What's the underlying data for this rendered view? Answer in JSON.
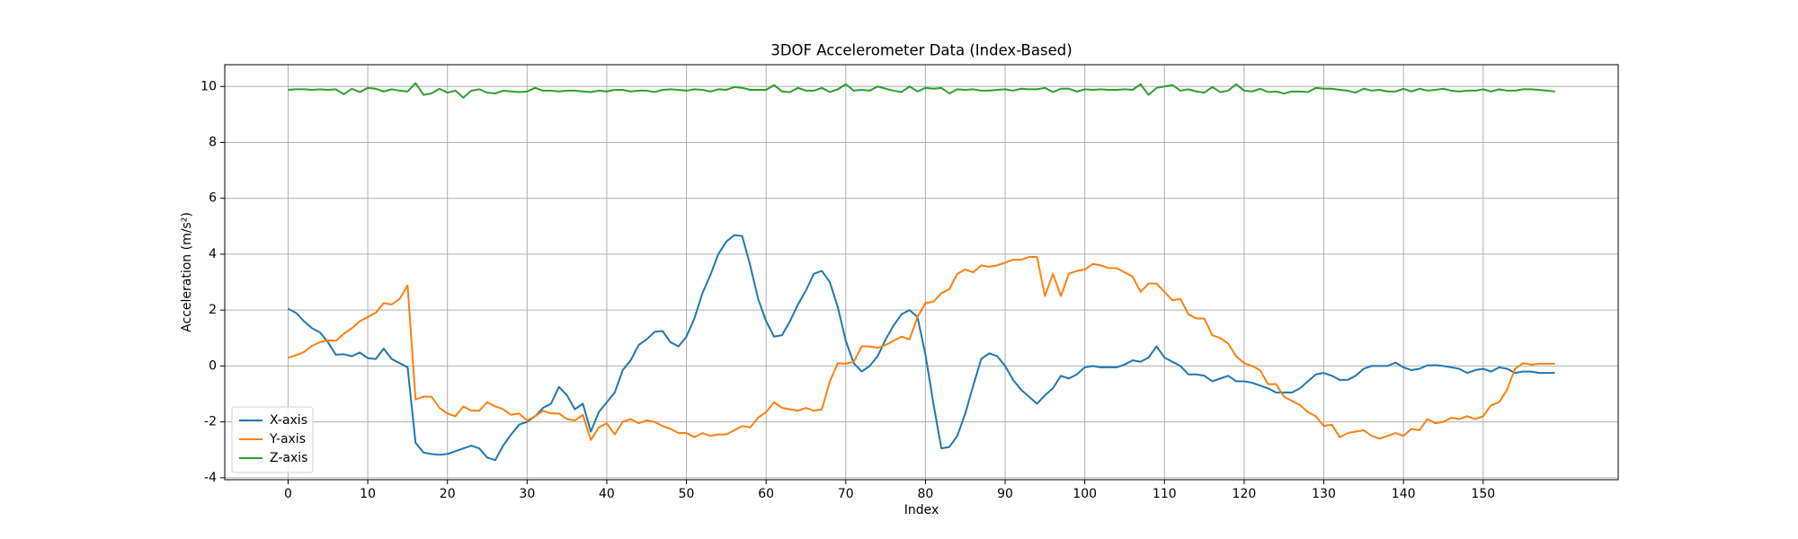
{
  "chart_data": {
    "type": "line",
    "title": "3DOF Accelerometer Data (Index-Based)",
    "xlabel": "Index",
    "ylabel": "Acceleration (m/s²)",
    "x": [
      0,
      1,
      2,
      3,
      4,
      5,
      6,
      7,
      8,
      9,
      10,
      11,
      12,
      13,
      14,
      15,
      16,
      17,
      18,
      19,
      20,
      21,
      22,
      23,
      24,
      25,
      26,
      27,
      28,
      29,
      30,
      31,
      32,
      33,
      34,
      35,
      36,
      37,
      38,
      39,
      40,
      41,
      42,
      43,
      44,
      45,
      46,
      47,
      48,
      49,
      50,
      51,
      52,
      53,
      54,
      55,
      56,
      57,
      58,
      59,
      60,
      61,
      62,
      63,
      64,
      65,
      66,
      67,
      68,
      69,
      70,
      71,
      72,
      73,
      74,
      75,
      76,
      77,
      78,
      79,
      80,
      81,
      82,
      83,
      84,
      85,
      86,
      87,
      88,
      89,
      90,
      91,
      92,
      93,
      94,
      95,
      96,
      97,
      98,
      99,
      100,
      101,
      102,
      103,
      104,
      105,
      106,
      107,
      108,
      109,
      110,
      111,
      112,
      113,
      114,
      115,
      116,
      117,
      118,
      119,
      120,
      121,
      122,
      123,
      124,
      125,
      126,
      127,
      128,
      129,
      130,
      131,
      132,
      133,
      134,
      135,
      136,
      137,
      138,
      139,
      140,
      141,
      142,
      143,
      144,
      145,
      146,
      147,
      148,
      149,
      150,
      151,
      152,
      153,
      154,
      155,
      156,
      157,
      158,
      159
    ],
    "series": [
      {
        "name": "X-axis",
        "color": "#1f77b4",
        "values": [
          2.05,
          1.9,
          1.6,
          1.35,
          1.2,
          0.85,
          0.4,
          0.42,
          0.35,
          0.48,
          0.28,
          0.25,
          0.62,
          0.25,
          0.1,
          -0.05,
          -2.75,
          -3.1,
          -3.15,
          -3.18,
          -3.15,
          -3.05,
          -2.95,
          -2.85,
          -2.95,
          -3.28,
          -3.37,
          -2.85,
          -2.45,
          -2.1,
          -2.0,
          -1.8,
          -1.5,
          -1.35,
          -0.75,
          -1.05,
          -1.55,
          -1.35,
          -2.35,
          -1.65,
          -1.3,
          -0.95,
          -0.15,
          0.2,
          0.75,
          0.95,
          1.22,
          1.25,
          0.85,
          0.7,
          1.05,
          1.7,
          2.6,
          3.25,
          4.0,
          4.45,
          4.68,
          4.65,
          3.6,
          2.4,
          1.6,
          1.05,
          1.1,
          1.6,
          2.2,
          2.7,
          3.3,
          3.4,
          3.0,
          2.1,
          0.9,
          0.1,
          -0.2,
          0.0,
          0.35,
          0.95,
          1.45,
          1.85,
          2.0,
          1.75,
          0.4,
          -1.35,
          -2.95,
          -2.9,
          -2.5,
          -1.7,
          -0.7,
          0.25,
          0.45,
          0.35,
          0.0,
          -0.5,
          -0.85,
          -1.1,
          -1.35,
          -1.05,
          -0.8,
          -0.35,
          -0.45,
          -0.3,
          -0.05,
          0.0,
          -0.05,
          -0.05,
          -0.05,
          0.05,
          0.2,
          0.15,
          0.3,
          0.7,
          0.3,
          0.15,
          0.0,
          -0.3,
          -0.3,
          -0.35,
          -0.55,
          -0.45,
          -0.35,
          -0.55,
          -0.55,
          -0.6,
          -0.7,
          -0.8,
          -0.95,
          -0.95,
          -0.95,
          -0.8,
          -0.55,
          -0.3,
          -0.25,
          -0.35,
          -0.5,
          -0.5,
          -0.35,
          -0.1,
          0.0,
          0.0,
          0.0,
          0.12,
          -0.05,
          -0.15,
          -0.1,
          0.02,
          0.03,
          0.0,
          -0.05,
          -0.1,
          -0.25,
          -0.15,
          -0.1,
          -0.2,
          -0.05,
          -0.1,
          -0.25,
          -0.2,
          -0.2,
          -0.25,
          -0.25,
          -0.25
        ]
      },
      {
        "name": "Y-axis",
        "color": "#ff7f0e",
        "values": [
          0.3,
          0.38,
          0.5,
          0.72,
          0.85,
          0.92,
          0.9,
          1.15,
          1.35,
          1.6,
          1.75,
          1.9,
          2.25,
          2.2,
          2.4,
          2.88,
          -1.2,
          -1.1,
          -1.1,
          -1.5,
          -1.7,
          -1.8,
          -1.45,
          -1.6,
          -1.6,
          -1.3,
          -1.45,
          -1.55,
          -1.75,
          -1.7,
          -1.95,
          -1.8,
          -1.6,
          -1.7,
          -1.7,
          -1.9,
          -1.95,
          -1.75,
          -2.65,
          -2.2,
          -2.05,
          -2.45,
          -2.0,
          -1.9,
          -2.05,
          -1.95,
          -2.0,
          -2.15,
          -2.25,
          -2.4,
          -2.4,
          -2.55,
          -2.4,
          -2.5,
          -2.45,
          -2.45,
          -2.3,
          -2.15,
          -2.2,
          -1.85,
          -1.65,
          -1.3,
          -1.5,
          -1.55,
          -1.6,
          -1.5,
          -1.6,
          -1.55,
          -0.55,
          0.1,
          0.08,
          0.15,
          0.7,
          0.7,
          0.65,
          0.75,
          0.9,
          1.05,
          0.95,
          1.75,
          2.25,
          2.3,
          2.6,
          2.75,
          3.3,
          3.45,
          3.35,
          3.6,
          3.55,
          3.6,
          3.7,
          3.8,
          3.8,
          3.9,
          3.9,
          2.5,
          3.3,
          2.5,
          3.3,
          3.4,
          3.45,
          3.65,
          3.6,
          3.5,
          3.5,
          3.35,
          3.2,
          2.65,
          2.95,
          2.95,
          2.65,
          2.35,
          2.4,
          1.85,
          1.7,
          1.7,
          1.1,
          1.0,
          0.8,
          0.35,
          0.1,
          0.0,
          -0.15,
          -0.65,
          -0.65,
          -1.1,
          -1.25,
          -1.4,
          -1.65,
          -1.8,
          -2.15,
          -2.1,
          -2.55,
          -2.4,
          -2.35,
          -2.3,
          -2.5,
          -2.6,
          -2.5,
          -2.4,
          -2.5,
          -2.25,
          -2.3,
          -1.9,
          -2.05,
          -2.0,
          -1.85,
          -1.9,
          -1.8,
          -1.9,
          -1.8,
          -1.4,
          -1.3,
          -0.85,
          -0.1,
          0.1,
          0.05,
          0.08,
          0.08,
          0.08
        ]
      },
      {
        "name": "Z-axis",
        "color": "#2ca02c",
        "values": [
          9.88,
          9.9,
          9.9,
          9.88,
          9.9,
          9.88,
          9.9,
          9.72,
          9.92,
          9.8,
          9.95,
          9.92,
          9.82,
          9.9,
          9.85,
          9.82,
          10.12,
          9.7,
          9.75,
          9.92,
          9.78,
          9.85,
          9.6,
          9.85,
          9.9,
          9.78,
          9.75,
          9.85,
          9.82,
          9.8,
          9.82,
          9.95,
          9.85,
          9.85,
          9.82,
          9.85,
          9.85,
          9.82,
          9.8,
          9.85,
          9.82,
          9.88,
          9.88,
          9.82,
          9.85,
          9.85,
          9.8,
          9.88,
          9.9,
          9.88,
          9.85,
          9.9,
          9.88,
          9.82,
          9.9,
          9.88,
          9.98,
          9.95,
          9.88,
          9.88,
          9.88,
          10.05,
          9.82,
          9.8,
          9.95,
          9.85,
          9.85,
          9.95,
          9.8,
          9.9,
          10.08,
          9.85,
          9.88,
          9.85,
          10.0,
          9.92,
          9.85,
          9.8,
          10.0,
          9.82,
          9.95,
          9.92,
          9.95,
          9.75,
          9.9,
          9.88,
          9.9,
          9.85,
          9.85,
          9.88,
          9.9,
          9.85,
          9.92,
          9.9,
          9.9,
          9.95,
          9.8,
          9.92,
          9.92,
          9.82,
          9.9,
          9.88,
          9.9,
          9.88,
          9.88,
          9.9,
          9.88,
          10.08,
          9.7,
          9.95,
          10.0,
          10.05,
          9.85,
          9.9,
          9.82,
          9.78,
          9.98,
          9.8,
          9.85,
          10.08,
          9.85,
          9.82,
          9.92,
          9.8,
          9.82,
          9.75,
          9.82,
          9.82,
          9.8,
          9.95,
          9.92,
          9.92,
          9.88,
          9.85,
          9.78,
          9.92,
          9.85,
          9.88,
          9.82,
          9.82,
          9.92,
          9.82,
          9.92,
          9.85,
          9.88,
          9.92,
          9.85,
          9.82,
          9.85,
          9.85,
          9.9,
          9.82,
          9.9,
          9.85,
          9.85,
          9.9,
          9.9,
          9.88,
          9.85,
          9.82
        ]
      }
    ],
    "xlim": [
      -7.95,
      166.95
    ],
    "xticks": [
      0,
      10,
      20,
      30,
      40,
      50,
      60,
      70,
      80,
      90,
      100,
      110,
      120,
      130,
      140,
      150
    ],
    "ylim": [
      -4.07,
      10.78
    ],
    "yticks": [
      -4,
      -2,
      0,
      2,
      4,
      6,
      8,
      10
    ],
    "grid": true,
    "legend": "lower left"
  }
}
